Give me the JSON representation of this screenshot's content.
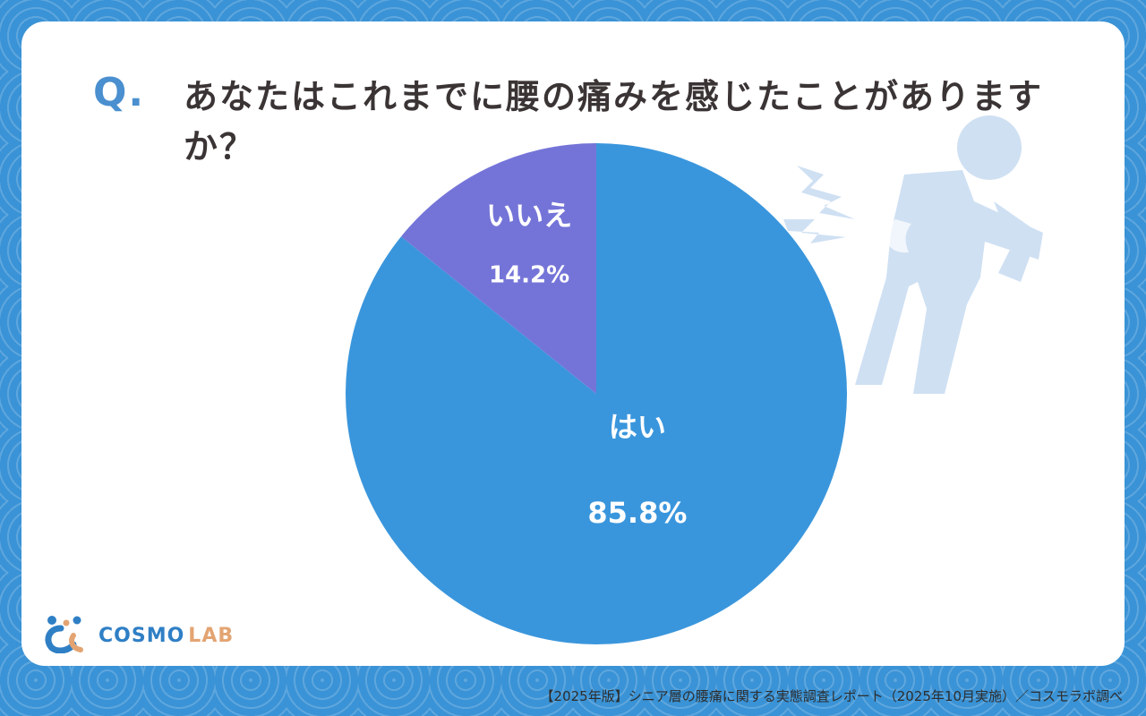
{
  "question_mark": "Q.",
  "question": "あなたはこれまでに腰の痛みを感じたことがありますか？",
  "chart_data": {
    "type": "pie",
    "title": "",
    "slices": [
      {
        "label": "はい",
        "value": 85.8,
        "value_label": "85.8%",
        "color": "#3a96dc"
      },
      {
        "label": "いいえ",
        "value": 14.2,
        "value_label": "14.2%",
        "color": "#7474d8"
      }
    ],
    "start": "12 o'clock",
    "direction": "clockwise"
  },
  "illustration": {
    "icon": "back-pain-person-icon",
    "color": "#cfe0f3"
  },
  "logo": {
    "icon": "cosmo-lab-logo-icon",
    "name_part1": "COSMO",
    "name_part2": "LAB"
  },
  "footer": "【2025年版】シニア層の腰痛に関する実態調査レポート（2025年10月実施）／コスモラボ調べ",
  "colors": {
    "background": "#3a93d6",
    "card": "#ffffff",
    "accent": "#4a8fcf",
    "text": "#3b3434"
  }
}
